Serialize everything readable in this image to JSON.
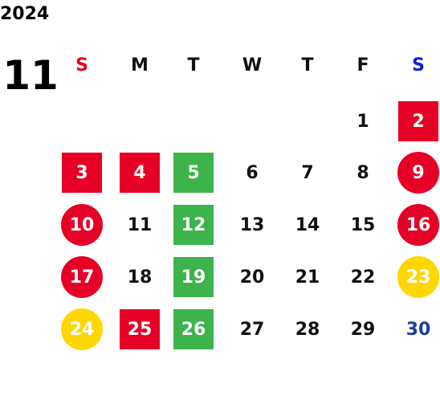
{
  "header": {
    "year": "2024",
    "month": "11"
  },
  "weekdays": [
    {
      "label": "S",
      "color": "#e60012"
    },
    {
      "label": "M",
      "color": "#111111"
    },
    {
      "label": "T",
      "color": "#111111"
    },
    {
      "label": "W",
      "color": "#111111"
    },
    {
      "label": "T",
      "color": "#111111"
    },
    {
      "label": "F",
      "color": "#111111"
    },
    {
      "label": "S",
      "color": "#0a1fd1"
    }
  ],
  "styles": {
    "plain": {
      "text": "#111111"
    },
    "red-square": {
      "fill": "#e60026",
      "shape": "square",
      "text": "#ffffff"
    },
    "red-circle": {
      "fill": "#e60026",
      "shape": "circle",
      "text": "#ffffff"
    },
    "green-square": {
      "fill": "#3cb44b",
      "shape": "square",
      "text": "#ffffff"
    },
    "yellow-circle": {
      "fill": "#ffd700",
      "shape": "circle",
      "text": "#ffffff"
    },
    "blue-text": {
      "text": "#1d3f94"
    }
  },
  "weeks": [
    [
      null,
      null,
      null,
      null,
      null,
      {
        "day": "1",
        "style": "plain"
      },
      {
        "day": "2",
        "style": "red-square"
      }
    ],
    [
      {
        "day": "3",
        "style": "red-square"
      },
      {
        "day": "4",
        "style": "red-square"
      },
      {
        "day": "5",
        "style": "green-square"
      },
      {
        "day": "6",
        "style": "plain"
      },
      {
        "day": "7",
        "style": "plain"
      },
      {
        "day": "8",
        "style": "plain"
      },
      {
        "day": "9",
        "style": "red-circle"
      }
    ],
    [
      {
        "day": "10",
        "style": "red-circle"
      },
      {
        "day": "11",
        "style": "plain"
      },
      {
        "day": "12",
        "style": "green-square"
      },
      {
        "day": "13",
        "style": "plain"
      },
      {
        "day": "14",
        "style": "plain"
      },
      {
        "day": "15",
        "style": "plain"
      },
      {
        "day": "16",
        "style": "red-circle"
      }
    ],
    [
      {
        "day": "17",
        "style": "red-circle"
      },
      {
        "day": "18",
        "style": "plain"
      },
      {
        "day": "19",
        "style": "green-square"
      },
      {
        "day": "20",
        "style": "plain"
      },
      {
        "day": "21",
        "style": "plain"
      },
      {
        "day": "22",
        "style": "plain"
      },
      {
        "day": "23",
        "style": "yellow-circle"
      }
    ],
    [
      {
        "day": "24",
        "style": "yellow-circle"
      },
      {
        "day": "25",
        "style": "red-square"
      },
      {
        "day": "26",
        "style": "green-square"
      },
      {
        "day": "27",
        "style": "plain"
      },
      {
        "day": "28",
        "style": "plain"
      },
      {
        "day": "29",
        "style": "plain"
      },
      {
        "day": "30",
        "style": "blue-text"
      }
    ]
  ]
}
